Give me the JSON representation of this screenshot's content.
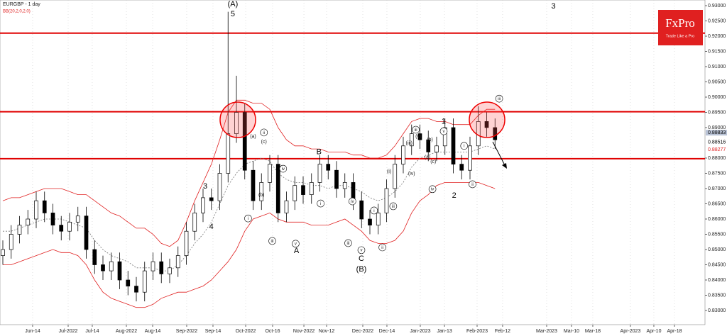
{
  "chart_data": {
    "type": "candlestick",
    "title": "EURGBP - 1 day",
    "subtitle": "BB(20,2,0,2.0)",
    "up_color": "#ffffff",
    "down_color": "#000000",
    "band_color": "#e02020",
    "mid_color": "#777777",
    "level_color": "#e00000",
    "xlim": [
      -0.34,
      84.17
    ],
    "ylim": [
      0.82535,
      0.93186
    ],
    "grid": true,
    "xticks": [
      {
        "value": 3.57,
        "label": "Jun-14"
      },
      {
        "value": 7.83,
        "label": "Jul-2022"
      },
      {
        "value": 10.72,
        "label": "Jul-14"
      },
      {
        "value": 14.81,
        "label": "Aug-2022"
      },
      {
        "value": 17.96,
        "label": "Aug-14"
      },
      {
        "value": 22.04,
        "label": "Sep-2022"
      },
      {
        "value": 25.19,
        "label": "Sep-14"
      },
      {
        "value": 29.11,
        "label": "Oct-2022"
      },
      {
        "value": 32.34,
        "label": "Oct-16"
      },
      {
        "value": 36.09,
        "label": "Nov-2022"
      },
      {
        "value": 38.81,
        "label": "Nov-12"
      },
      {
        "value": 43.15,
        "label": "Dec-2022"
      },
      {
        "value": 46.04,
        "label": "Dec-14"
      },
      {
        "value": 50.04,
        "label": "Jan-2023"
      },
      {
        "value": 52.94,
        "label": "Jan-13"
      },
      {
        "value": 56.85,
        "label": "Feb-2023"
      },
      {
        "value": 59.91,
        "label": "Feb-12"
      },
      {
        "value": 65.19,
        "label": "Mar-2023"
      },
      {
        "value": 68.17,
        "label": "Mar-10"
      },
      {
        "value": 70.72,
        "label": "Mar-18"
      },
      {
        "value": 75.23,
        "label": "Apr-2023"
      },
      {
        "value": 78.04,
        "label": "Apr-10"
      },
      {
        "value": 80.51,
        "label": "Apr-18"
      }
    ],
    "yticks": [
      {
        "value": 0.93,
        "label": "0.93000"
      },
      {
        "value": 0.925,
        "label": "0.92500"
      },
      {
        "value": 0.92,
        "label": "0.92000"
      },
      {
        "value": 0.915,
        "label": "0.91500"
      },
      {
        "value": 0.91,
        "label": "0.91000"
      },
      {
        "value": 0.905,
        "label": "0.90500"
      },
      {
        "value": 0.9,
        "label": "0.90000"
      },
      {
        "value": 0.895,
        "label": "0.89500"
      },
      {
        "value": 0.89,
        "label": "0.89000"
      },
      {
        "value": 0.88,
        "label": "0.88000"
      },
      {
        "value": 0.875,
        "label": "0.87500"
      },
      {
        "value": 0.87,
        "label": "0.87000"
      },
      {
        "value": 0.865,
        "label": "0.86500"
      },
      {
        "value": 0.86,
        "label": "0.86000"
      },
      {
        "value": 0.855,
        "label": "0.85500"
      },
      {
        "value": 0.85,
        "label": "0.85000"
      },
      {
        "value": 0.845,
        "label": "0.84500"
      },
      {
        "value": 0.84,
        "label": "0.84000"
      },
      {
        "value": 0.835,
        "label": "0.83500"
      },
      {
        "value": 0.83,
        "label": "0.83000"
      }
    ],
    "ohlc": [
      [
        0.848,
        0.853,
        0.845,
        0.85
      ],
      [
        0.85,
        0.858,
        0.847,
        0.855
      ],
      [
        0.855,
        0.861,
        0.852,
        0.858
      ],
      [
        0.858,
        0.863,
        0.855,
        0.86
      ],
      [
        0.86,
        0.869,
        0.857,
        0.866
      ],
      [
        0.866,
        0.869,
        0.859,
        0.862
      ],
      [
        0.862,
        0.865,
        0.855,
        0.858
      ],
      [
        0.858,
        0.861,
        0.853,
        0.856
      ],
      [
        0.856,
        0.862,
        0.853,
        0.859
      ],
      [
        0.859,
        0.864,
        0.856,
        0.861
      ],
      [
        0.861,
        0.864,
        0.847,
        0.85
      ],
      [
        0.85,
        0.853,
        0.842,
        0.845
      ],
      [
        0.845,
        0.848,
        0.84,
        0.843
      ],
      [
        0.843,
        0.849,
        0.84,
        0.846
      ],
      [
        0.846,
        0.849,
        0.837,
        0.84
      ],
      [
        0.84,
        0.843,
        0.835,
        0.838
      ],
      [
        0.838,
        0.841,
        0.833,
        0.836
      ],
      [
        0.836,
        0.846,
        0.833,
        0.843
      ],
      [
        0.843,
        0.849,
        0.84,
        0.846
      ],
      [
        0.846,
        0.849,
        0.839,
        0.842
      ],
      [
        0.842,
        0.847,
        0.839,
        0.844
      ],
      [
        0.844,
        0.851,
        0.841,
        0.848
      ],
      [
        0.848,
        0.859,
        0.845,
        0.856
      ],
      [
        0.856,
        0.865,
        0.853,
        0.862
      ],
      [
        0.862,
        0.87,
        0.859,
        0.867
      ],
      [
        0.867,
        0.87,
        0.863,
        0.866
      ],
      [
        0.866,
        0.878,
        0.863,
        0.875
      ],
      [
        0.875,
        0.928,
        0.872,
        0.888
      ],
      [
        0.888,
        0.907,
        0.885,
        0.895
      ],
      [
        0.895,
        0.898,
        0.873,
        0.876
      ],
      [
        0.876,
        0.879,
        0.863,
        0.866
      ],
      [
        0.866,
        0.875,
        0.863,
        0.872
      ],
      [
        0.872,
        0.881,
        0.869,
        0.878
      ],
      [
        0.878,
        0.881,
        0.859,
        0.862
      ],
      [
        0.862,
        0.869,
        0.859,
        0.866
      ],
      [
        0.866,
        0.874,
        0.863,
        0.871
      ],
      [
        0.871,
        0.874,
        0.865,
        0.868
      ],
      [
        0.868,
        0.875,
        0.865,
        0.872
      ],
      [
        0.872,
        0.881,
        0.869,
        0.878
      ],
      [
        0.878,
        0.881,
        0.873,
        0.876
      ],
      [
        0.876,
        0.879,
        0.867,
        0.87
      ],
      [
        0.87,
        0.875,
        0.867,
        0.872
      ],
      [
        0.872,
        0.875,
        0.863,
        0.866
      ],
      [
        0.866,
        0.869,
        0.857,
        0.86
      ],
      [
        0.86,
        0.863,
        0.855,
        0.858
      ],
      [
        0.858,
        0.865,
        0.855,
        0.862
      ],
      [
        0.862,
        0.873,
        0.859,
        0.87
      ],
      [
        0.87,
        0.881,
        0.867,
        0.878
      ],
      [
        0.878,
        0.887,
        0.875,
        0.884
      ],
      [
        0.884,
        0.891,
        0.881,
        0.888
      ],
      [
        0.888,
        0.891,
        0.883,
        0.886
      ],
      [
        0.886,
        0.889,
        0.879,
        0.882
      ],
      [
        0.882,
        0.887,
        0.879,
        0.884
      ],
      [
        0.884,
        0.893,
        0.881,
        0.89
      ],
      [
        0.89,
        0.893,
        0.875,
        0.878
      ],
      [
        0.878,
        0.881,
        0.873,
        0.876
      ],
      [
        0.876,
        0.887,
        0.873,
        0.884
      ],
      [
        0.884,
        0.897,
        0.881,
        0.892
      ],
      [
        0.892,
        0.895,
        0.887,
        0.89
      ],
      [
        0.89,
        0.893,
        0.883,
        0.886
      ]
    ],
    "bands": {
      "upper": [
        0.866,
        0.867,
        0.867,
        0.868,
        0.869,
        0.87,
        0.87,
        0.87,
        0.869,
        0.868,
        0.868,
        0.866,
        0.864,
        0.862,
        0.861,
        0.859,
        0.857,
        0.857,
        0.855,
        0.852,
        0.851,
        0.853,
        0.859,
        0.866,
        0.872,
        0.878,
        0.886,
        0.895,
        0.899,
        0.899,
        0.898,
        0.898,
        0.896,
        0.89,
        0.886,
        0.884,
        0.884,
        0.883,
        0.883,
        0.882,
        0.882,
        0.882,
        0.881,
        0.881,
        0.88,
        0.88,
        0.881,
        0.884,
        0.888,
        0.892,
        0.893,
        0.893,
        0.892,
        0.892,
        0.891,
        0.891,
        0.891,
        0.894,
        0.896,
        0.896
      ],
      "middle": [
        0.856,
        0.856,
        0.857,
        0.858,
        0.859,
        0.86,
        0.86,
        0.86,
        0.859,
        0.858,
        0.857,
        0.853,
        0.85,
        0.848,
        0.847,
        0.846,
        0.844,
        0.844,
        0.844,
        0.843,
        0.843,
        0.845,
        0.848,
        0.852,
        0.855,
        0.859,
        0.865,
        0.871,
        0.875,
        0.878,
        0.879,
        0.88,
        0.879,
        0.875,
        0.873,
        0.872,
        0.872,
        0.871,
        0.871,
        0.87,
        0.871,
        0.871,
        0.87,
        0.869,
        0.867,
        0.866,
        0.867,
        0.869,
        0.872,
        0.877,
        0.88,
        0.881,
        0.882,
        0.882,
        0.882,
        0.882,
        0.882,
        0.883,
        0.884,
        0.883
      ],
      "lower": [
        0.845,
        0.845,
        0.846,
        0.847,
        0.848,
        0.849,
        0.85,
        0.849,
        0.849,
        0.848,
        0.845,
        0.84,
        0.836,
        0.834,
        0.833,
        0.832,
        0.831,
        0.831,
        0.832,
        0.834,
        0.835,
        0.836,
        0.836,
        0.837,
        0.838,
        0.84,
        0.843,
        0.846,
        0.85,
        0.856,
        0.86,
        0.861,
        0.862,
        0.86,
        0.859,
        0.859,
        0.859,
        0.858,
        0.858,
        0.858,
        0.859,
        0.86,
        0.858,
        0.856,
        0.853,
        0.852,
        0.852,
        0.853,
        0.856,
        0.862,
        0.866,
        0.868,
        0.871,
        0.872,
        0.872,
        0.872,
        0.872,
        0.872,
        0.871,
        0.87
      ]
    },
    "levels": [
      0.921,
      0.8952,
      0.8798
    ],
    "price_labels": [
      {
        "value": 0.88833,
        "label": "0.88833"
      },
      {
        "value": 0.88516,
        "label": "0.88516"
      },
      {
        "value": 0.88277,
        "label": "0.88277"
      }
    ],
    "annotations": [
      {
        "text": "(A)",
        "x": 27.57,
        "y": 0.9305
      },
      {
        "text": "5",
        "x": 27.57,
        "y": 0.9272
      },
      {
        "text": "3",
        "x": 24.26,
        "y": 0.8707
      },
      {
        "text": "4",
        "x": 25.0,
        "y": 0.8574
      },
      {
        "text": "A",
        "x": 35.2,
        "y": 0.8495
      },
      {
        "text": "B",
        "x": 37.9,
        "y": 0.8819
      },
      {
        "text": "C",
        "x": 42.98,
        "y": 0.847
      },
      {
        "text": "(B)",
        "x": 42.98,
        "y": 0.8435
      },
      {
        "text": "1",
        "x": 52.85,
        "y": 0.8919
      },
      {
        "text": "2",
        "x": 54.1,
        "y": 0.8677
      },
      {
        "text": "3",
        "x": 66.0,
        "y": 0.9298
      },
      {
        "text": "ii",
        "x": 31.3,
        "y": 0.8884,
        "circled": true
      },
      {
        "text": "i",
        "x": 29.4,
        "y": 0.8602,
        "circled": true
      },
      {
        "text": "iii",
        "x": 32.3,
        "y": 0.8528,
        "circled": true
      },
      {
        "text": "v",
        "x": 35.1,
        "y": 0.8519,
        "circled": true
      },
      {
        "text": "iv",
        "x": 33.6,
        "y": 0.8765,
        "circled": true
      },
      {
        "text": "i",
        "x": 38.1,
        "y": 0.8651,
        "circled": true
      },
      {
        "text": "iv",
        "x": 41.9,
        "y": 0.8658,
        "circled": true
      },
      {
        "text": "iii",
        "x": 41.4,
        "y": 0.8521,
        "circled": true
      },
      {
        "text": "v",
        "x": 42.98,
        "y": 0.8498,
        "circled": true
      },
      {
        "text": "ii",
        "x": 45.5,
        "y": 0.8507,
        "circled": true
      },
      {
        "text": "i",
        "x": 44.5,
        "y": 0.8628,
        "circled": true
      },
      {
        "text": "iii",
        "x": 46.8,
        "y": 0.8642,
        "circled": true
      },
      {
        "text": "iii",
        "x": 49.5,
        "y": 0.8893,
        "circled": true
      },
      {
        "text": "v",
        "x": 52.85,
        "y": 0.8888,
        "circled": true
      },
      {
        "text": "iv",
        "x": 51.5,
        "y": 0.8698,
        "circled": true
      },
      {
        "text": "ii",
        "x": 56.3,
        "y": 0.8714,
        "circled": true
      },
      {
        "text": "iii",
        "x": 59.5,
        "y": 0.8995,
        "circled": true
      },
      {
        "text": "i",
        "x": 55.3,
        "y": 0.884,
        "circled": true
      },
      {
        "text": "(a)",
        "x": 30.0,
        "y": 0.887
      },
      {
        "text": "(b)",
        "x": 31.0,
        "y": 0.8679
      },
      {
        "text": "(c)",
        "x": 31.3,
        "y": 0.8853
      },
      {
        "text": "(i)",
        "x": 46.3,
        "y": 0.8756
      },
      {
        "text": "(iii)",
        "x": 48.7,
        "y": 0.8849
      },
      {
        "text": "(iv)",
        "x": 49.0,
        "y": 0.8749
      },
      {
        "text": "(v)",
        "x": 49.8,
        "y": 0.887
      },
      {
        "text": "(a)",
        "x": 50.9,
        "y": 0.8802
      },
      {
        "text": "(b)",
        "x": 51.2,
        "y": 0.886
      },
      {
        "text": "(c)",
        "x": 51.6,
        "y": 0.8788
      }
    ]
  },
  "logo": {
    "name": "FxPro",
    "tagline": "Trade Like a Pro"
  }
}
